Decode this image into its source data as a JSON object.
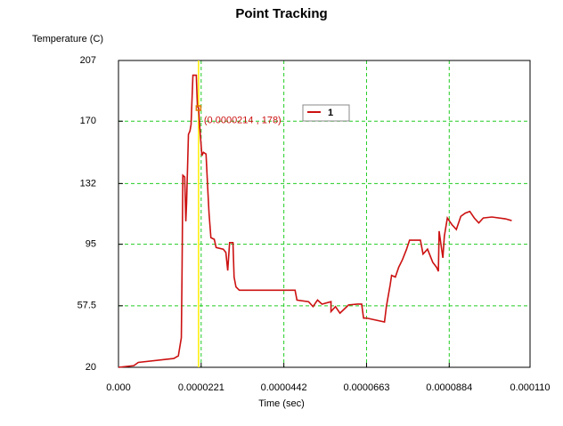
{
  "chart_data": {
    "type": "line",
    "title": "Point Tracking",
    "y_label": "Temperature (C)",
    "x_label": "Time (sec)",
    "xlim": [
      0,
      0.00011
    ],
    "ylim": [
      20,
      207
    ],
    "xticks": [
      {
        "value": 0,
        "label": "0.000"
      },
      2.21e-05,
      4.42e-05,
      6.63e-05,
      8.84e-05,
      {
        "value": 0.00011,
        "label": "0.000110"
      }
    ],
    "yticks": [
      20,
      57.5,
      95,
      132,
      170,
      207
    ],
    "grid": true,
    "grid_color": "#22cc22",
    "series": [
      {
        "name": "1",
        "color": "#cc1111",
        "x": [
          0,
          4.1e-06,
          5.3e-06,
          1.48e-05,
          1.6e-05,
          1.68e-05,
          1.7e-05,
          1.72e-05,
          1.77e-05,
          1.8e-05,
          1.82e-05,
          1.87e-05,
          1.91e-05,
          1.94e-05,
          1.99e-05,
          2.08e-05,
          2.11e-05,
          2.14e-05,
          2.18e-05,
          2.23e-05,
          2.27e-05,
          2.34e-05,
          2.39e-05,
          2.42e-05,
          2.47e-05,
          2.56e-05,
          2.61e-05,
          2.8e-05,
          2.87e-05,
          2.92e-05,
          2.97e-05,
          3.06e-05,
          3.09e-05,
          3.14e-05,
          3.23e-05,
          3.52e-05,
          4.41e-05,
          4.72e-05,
          4.77e-05,
          5.08e-05,
          5.2e-05,
          5.32e-05,
          5.44e-05,
          5.68e-05,
          5.68e-05,
          5.8e-05,
          5.92e-05,
          6.15e-05,
          6.39e-05,
          6.5e-05,
          6.55e-05,
          6.63e-05,
          7.11e-05,
          7.16e-05,
          7.26e-05,
          7.3e-05,
          7.4e-05,
          7.49e-05,
          7.59e-05,
          7.7e-05,
          7.78e-05,
          8.07e-05,
          8.14e-05,
          8.26e-05,
          8.4e-05,
          8.5e-05,
          8.55e-05,
          8.57e-05,
          8.67e-05,
          8.71e-05,
          8.79e-05,
          8.91e-05,
          9.03e-05,
          9.15e-05,
          9.27e-05,
          9.39e-05,
          9.51e-05,
          9.63e-05,
          9.75e-05,
          9.98e-05,
          0.0001034,
          0.0001051
        ],
        "values": [
          20,
          21,
          23,
          25.4,
          27,
          38,
          81,
          137,
          136,
          109,
          120,
          162,
          164,
          168,
          198,
          198,
          179,
          178,
          164,
          149,
          151,
          150,
          127,
          114,
          99,
          98,
          93,
          92,
          90,
          79,
          96,
          96,
          75,
          69,
          67,
          67,
          67,
          67,
          61,
          60,
          57,
          61,
          58.5,
          60,
          54,
          57,
          53,
          58,
          58.5,
          58.5,
          50,
          50,
          47.6,
          57,
          70,
          76,
          75,
          81,
          85.6,
          92,
          97.5,
          97.5,
          89,
          92,
          84,
          81,
          78.5,
          103,
          86.7,
          100,
          111,
          107,
          104,
          112,
          114,
          115,
          111,
          108,
          111,
          111.6,
          110.5,
          109.4
        ]
      }
    ],
    "cursor": {
      "x": 2.14e-05,
      "y": 178,
      "label": "(0.0000214 , 178)",
      "color": "#ffee00"
    }
  }
}
